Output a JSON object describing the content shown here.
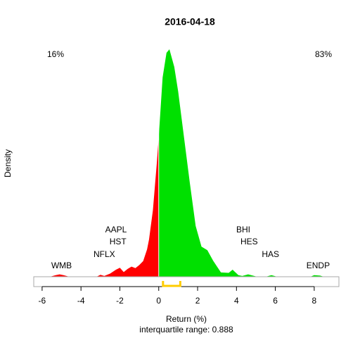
{
  "chart_data": {
    "type": "area",
    "title": "2016-04-18",
    "x_label": "Return (%)",
    "x_note": "interquartile range: 0.888",
    "y_label": "Density",
    "xlim": [
      -6.43,
      9.27
    ],
    "xticks": [
      -6,
      -4,
      -2,
      0,
      2,
      4,
      6,
      8
    ],
    "ylim": [
      0,
      0.6
    ],
    "series": [
      {
        "color": "#ff0000",
        "x": [
          -5.6,
          -5.3,
          -5.1,
          -4.9,
          -4.6,
          -3.2,
          -3.0,
          -2.8,
          -2.5,
          -2.2,
          -2.0,
          -1.8,
          -1.6,
          -1.4,
          -1.2,
          -1.0,
          -0.8,
          -0.6,
          -0.5,
          -0.3,
          -0.1,
          0
        ],
        "values": [
          0,
          0.004,
          0.006,
          0.004,
          0,
          0,
          0.005,
          0.002,
          0.008,
          0.018,
          0.023,
          0.012,
          0.02,
          0.026,
          0.022,
          0.03,
          0.04,
          0.07,
          0.095,
          0.17,
          0.29,
          0.357
        ]
      },
      {
        "color": "#00e000",
        "x": [
          0,
          0.2,
          0.4,
          0.55,
          0.8,
          1.0,
          1.3,
          1.6,
          1.9,
          2.2,
          2.5,
          2.8,
          3.2,
          3.6,
          3.8,
          4.1,
          4.3,
          4.6,
          5.0,
          5.5,
          5.8,
          6.1,
          7.8,
          8.0,
          8.3,
          8.5
        ],
        "values": [
          0.357,
          0.51,
          0.573,
          0.582,
          0.537,
          0.474,
          0.357,
          0.24,
          0.13,
          0.077,
          0.068,
          0.041,
          0.011,
          0.01,
          0.018,
          0.004,
          0.002,
          0.006,
          0.001,
          0,
          0.004,
          0,
          0,
          0.004,
          0.003,
          0
        ]
      }
    ],
    "corner_labels": [
      {
        "text": "16%",
        "color": "#ff0000"
      },
      {
        "text": "83%",
        "color": "#00a000"
      }
    ],
    "tickers": [
      {
        "text": "WMB",
        "x": -5.0
      },
      {
        "text": "NFLX",
        "x": -2.8
      },
      {
        "text": "HST",
        "x": -2.1
      },
      {
        "text": "AAPL",
        "x": -2.2
      },
      {
        "text": "BHI",
        "x": 4.35
      },
      {
        "text": "HES",
        "x": 4.65
      },
      {
        "text": "HAS",
        "x": 5.75
      },
      {
        "text": "ENDP",
        "x": 8.2
      }
    ],
    "iqr": [
      0.22,
      1.108
    ],
    "iqr_color": "#ffcc00"
  }
}
